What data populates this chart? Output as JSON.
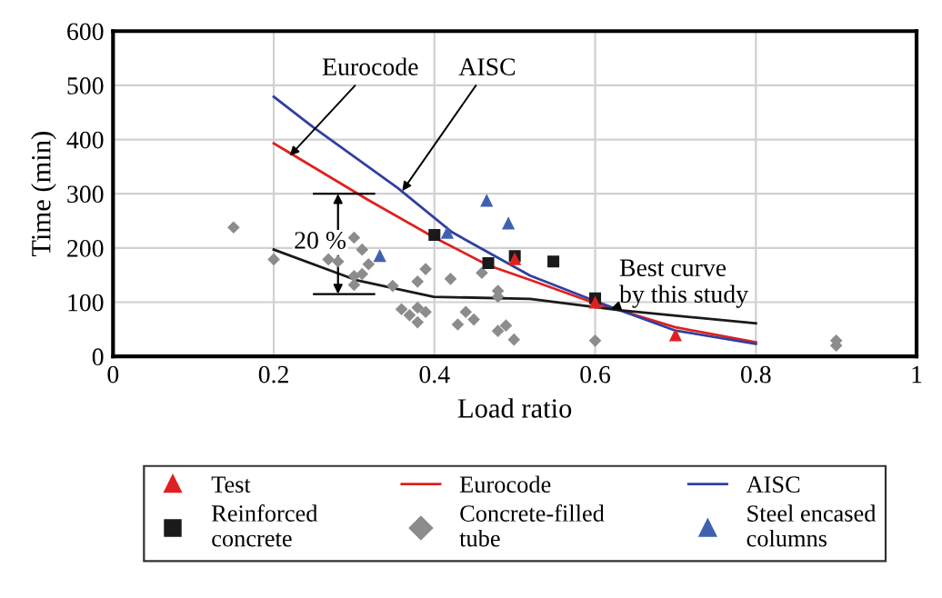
{
  "chart_data": {
    "type": "scatter",
    "xlabel": "Load ratio",
    "ylabel": "Time (min)",
    "xlim": [
      0,
      1
    ],
    "ylim": [
      0,
      600
    ],
    "xticks": [
      0,
      0.2,
      0.4,
      0.6,
      0.8,
      1
    ],
    "yticks": [
      0,
      100,
      200,
      300,
      400,
      500,
      600
    ],
    "grid": true,
    "legend": "bottom",
    "series": [
      {
        "name": "Test",
        "marker": "triangle",
        "color": "#e02020",
        "x": [
          0.5,
          0.6,
          0.7
        ],
        "values": [
          180,
          100,
          40
        ]
      },
      {
        "name": "Reinforced\nconcrete",
        "marker": "square",
        "color": "#1a1a1a",
        "x": [
          0.4,
          0.467,
          0.5,
          0.548,
          0.6
        ],
        "values": [
          224,
          172,
          185,
          175,
          107
        ]
      },
      {
        "name": "Eurocode",
        "type": "line",
        "marker": "none",
        "color": "#e02020",
        "x": [
          0.2,
          0.227,
          0.317,
          0.399,
          0.467,
          0.519,
          0.6,
          0.631,
          0.699,
          0.8
        ],
        "values": [
          393,
          369,
          289,
          220,
          168,
          141,
          98,
          85,
          54,
          26
        ]
      },
      {
        "name": "Concrete-filled\ntube",
        "marker": "diamond",
        "color": "#8c8c8c",
        "x": [
          0.15,
          0.2,
          0.268,
          0.28,
          0.3,
          0.31,
          0.3,
          0.3,
          0.318,
          0.31,
          0.348,
          0.359,
          0.369,
          0.379,
          0.379,
          0.389,
          0.379,
          0.389,
          0.42,
          0.429,
          0.439,
          0.449,
          0.459,
          0.479,
          0.479,
          0.479,
          0.489,
          0.499,
          0.6,
          0.9,
          0.9
        ],
        "values": [
          238,
          179,
          179,
          175,
          219,
          197,
          148,
          132,
          170,
          152,
          130,
          87,
          76,
          90,
          63,
          82,
          138,
          161,
          143,
          59,
          82,
          68,
          154,
          121,
          110,
          47,
          57,
          31,
          29,
          29,
          20
        ]
      },
      {
        "name": "AISC",
        "type": "line",
        "marker": "none",
        "color": "#3040a0",
        "x": [
          0.2,
          0.249,
          0.354,
          0.422,
          0.519,
          0.6,
          0.631,
          0.699,
          0.8
        ],
        "values": [
          479,
          423,
          311,
          229,
          149,
          102,
          85,
          48,
          23
        ]
      },
      {
        "name": "Steel encased\ncolumns",
        "marker": "triangle",
        "color": "#4060b0",
        "x": [
          0.332,
          0.416,
          0.465,
          0.492
        ],
        "values": [
          186,
          229,
          288,
          246
        ]
      },
      {
        "type": "line",
        "marker": "none",
        "color": "#1a1a1a",
        "x": [
          0.2,
          0.302,
          0.399,
          0.519,
          0.631,
          0.8
        ],
        "values": [
          197,
          141,
          110,
          106,
          85,
          61
        ]
      }
    ],
    "annotations": [
      {
        "text": "Eurocode",
        "x": 0.22,
        "y": 370
      },
      {
        "text": "AISC",
        "x": 0.36,
        "y": 305
      },
      "20 %",
      {
        "text": "Best curve\nby this study",
        "x": 0.62,
        "y": 88
      }
    ]
  }
}
